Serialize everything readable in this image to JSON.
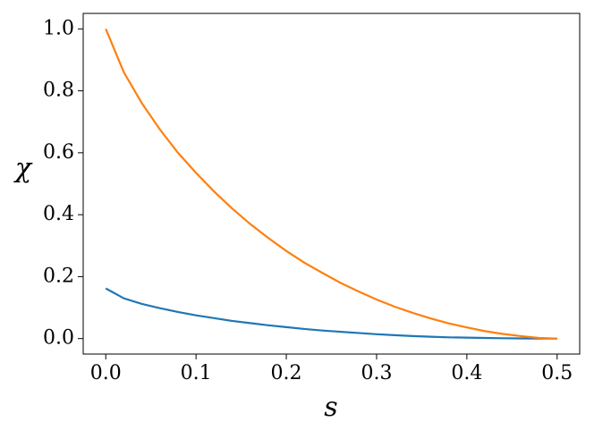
{
  "chart_data": {
    "type": "line",
    "x_label": "s",
    "y_label": "χ",
    "x": [
      0,
      0.02,
      0.04,
      0.06,
      0.08,
      0.1,
      0.12,
      0.14,
      0.16,
      0.18,
      0.2,
      0.22,
      0.24,
      0.26,
      0.28,
      0.3,
      0.32,
      0.34,
      0.36,
      0.38,
      0.4,
      0.42,
      0.44,
      0.46,
      0.48,
      0.5
    ],
    "series": [
      {
        "color": "#1f77b4",
        "values": [
          0.162,
          0.13,
          0.112,
          0.098,
          0.086,
          0.075,
          0.066,
          0.057,
          0.05,
          0.043,
          0.037,
          0.031,
          0.026,
          0.022,
          0.018,
          0.014,
          0.011,
          0.008,
          0.006,
          0.004,
          0.003,
          0.002,
          0.001,
          0.0005,
          0.0002,
          0
        ]
      },
      {
        "color": "#ff7f0e",
        "values": [
          1.0,
          0.86,
          0.76,
          0.675,
          0.6,
          0.535,
          0.475,
          0.42,
          0.37,
          0.325,
          0.283,
          0.245,
          0.212,
          0.18,
          0.152,
          0.126,
          0.103,
          0.083,
          0.065,
          0.049,
          0.036,
          0.024,
          0.015,
          0.008,
          0.002,
          0
        ]
      }
    ],
    "xlim": [
      -0.025,
      0.525
    ],
    "ylim": [
      -0.05,
      1.05
    ],
    "xticks": [
      {
        "value": 0,
        "label": "0.0"
      },
      {
        "value": 0.1,
        "label": "0.1"
      },
      {
        "value": 0.2,
        "label": "0.2"
      },
      {
        "value": 0.3,
        "label": "0.3"
      },
      {
        "value": 0.4,
        "label": "0.4"
      },
      {
        "value": 0.5,
        "label": "0.5"
      }
    ],
    "yticks": [
      {
        "value": 0,
        "label": "0.0"
      },
      {
        "value": 0.2,
        "label": "0.2"
      },
      {
        "value": 0.4,
        "label": "0.4"
      },
      {
        "value": 0.6,
        "label": "0.6"
      },
      {
        "value": 0.8,
        "label": "0.8"
      },
      {
        "value": 1.0,
        "label": "1.0"
      }
    ],
    "grid": false
  }
}
